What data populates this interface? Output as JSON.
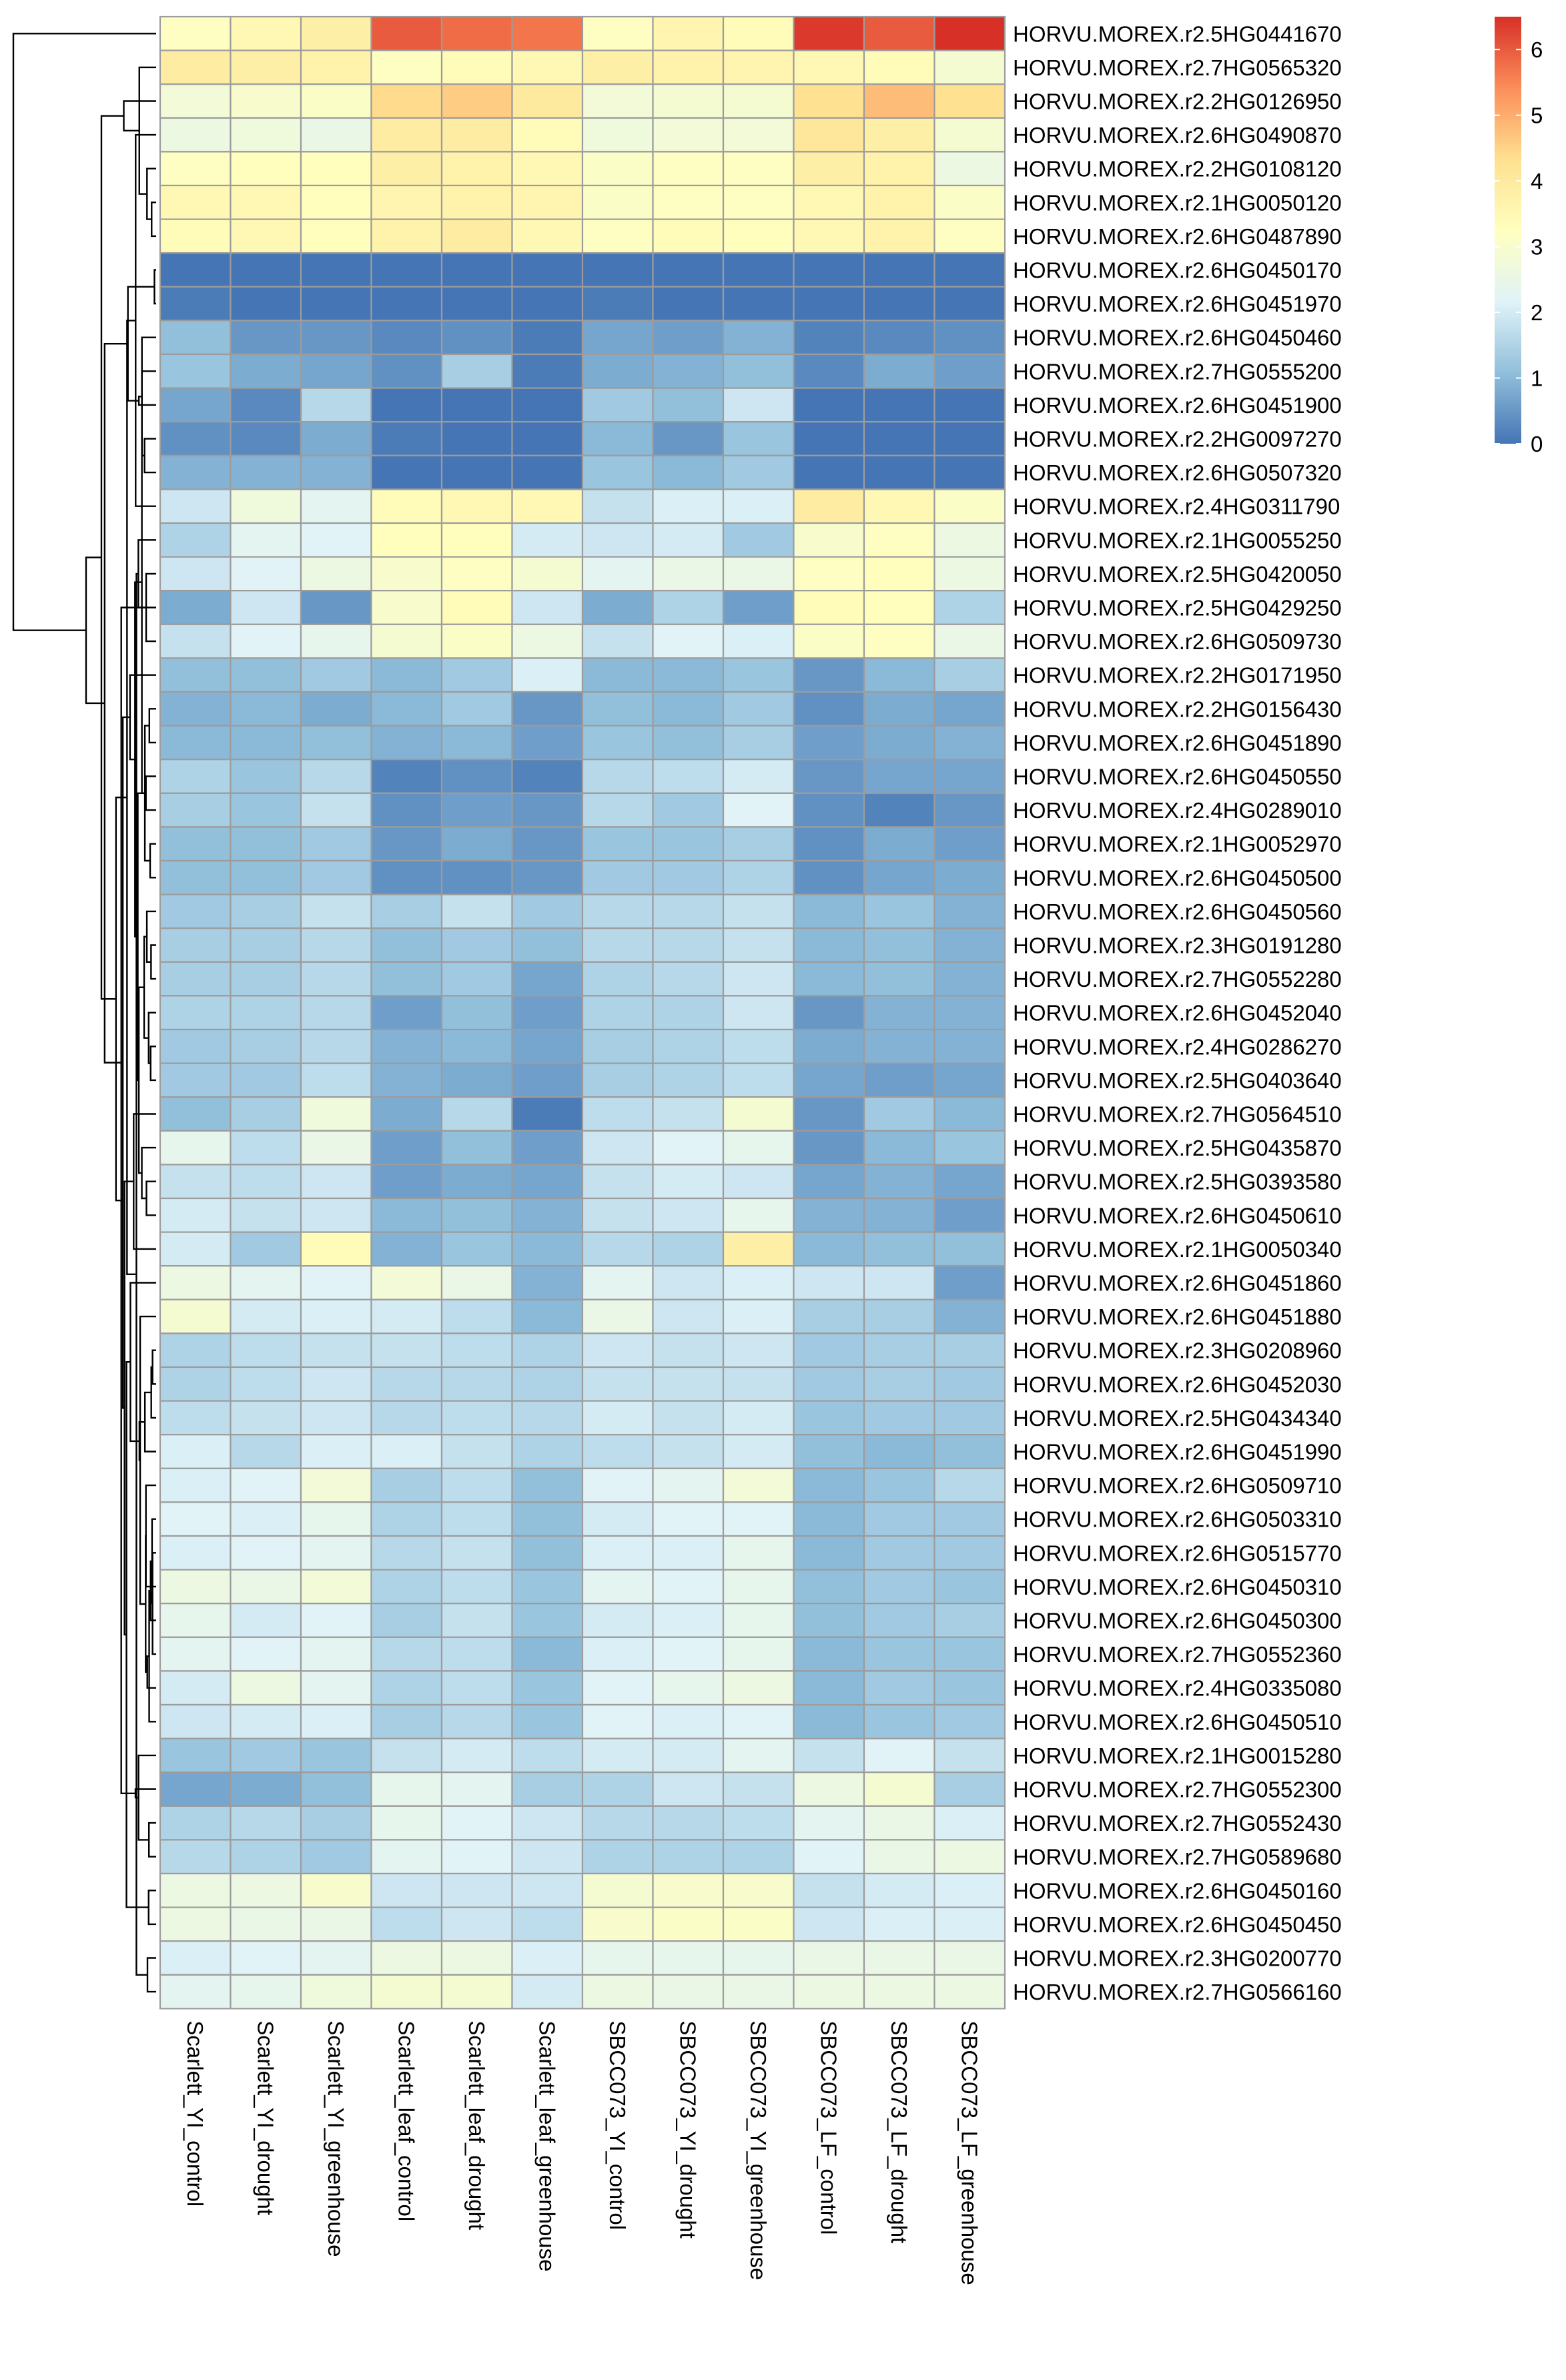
{
  "chart_data": {
    "type": "heatmap",
    "title": "",
    "xlabel": "",
    "ylabel": "",
    "columns": [
      "Scarlett_YI_control",
      "Scarlett_YI_drought",
      "Scarlett_YI_greenhouse",
      "Scarlett_leaf_control",
      "Scarlett_leaf_drought",
      "Scarlett_leaf_greenhouse",
      "SBCC073_YI_control",
      "SBCC073_YI_drought",
      "SBCC073_YI_greenhouse",
      "SBCC073_LF_control",
      "SBCC073_LF_drought",
      "SBCC073_LF_greenhouse"
    ],
    "rows": [
      "HORVU.MOREX.r2.5HG0441670",
      "HORVU.MOREX.r2.7HG0565320",
      "HORVU.MOREX.r2.2HG0126950",
      "HORVU.MOREX.r2.6HG0490870",
      "HORVU.MOREX.r2.2HG0108120",
      "HORVU.MOREX.r2.1HG0050120",
      "HORVU.MOREX.r2.6HG0487890",
      "HORVU.MOREX.r2.6HG0450170",
      "HORVU.MOREX.r2.6HG0451970",
      "HORVU.MOREX.r2.6HG0450460",
      "HORVU.MOREX.r2.7HG0555200",
      "HORVU.MOREX.r2.6HG0451900",
      "HORVU.MOREX.r2.2HG0097270",
      "HORVU.MOREX.r2.6HG0507320",
      "HORVU.MOREX.r2.4HG0311790",
      "HORVU.MOREX.r2.1HG0055250",
      "HORVU.MOREX.r2.5HG0420050",
      "HORVU.MOREX.r2.5HG0429250",
      "HORVU.MOREX.r2.6HG0509730",
      "HORVU.MOREX.r2.2HG0171950",
      "HORVU.MOREX.r2.2HG0156430",
      "HORVU.MOREX.r2.6HG0451890",
      "HORVU.MOREX.r2.6HG0450550",
      "HORVU.MOREX.r2.4HG0289010",
      "HORVU.MOREX.r2.1HG0052970",
      "HORVU.MOREX.r2.6HG0450500",
      "HORVU.MOREX.r2.6HG0450560",
      "HORVU.MOREX.r2.3HG0191280",
      "HORVU.MOREX.r2.7HG0552280",
      "HORVU.MOREX.r2.6HG0452040",
      "HORVU.MOREX.r2.4HG0286270",
      "HORVU.MOREX.r2.5HG0403640",
      "HORVU.MOREX.r2.7HG0564510",
      "HORVU.MOREX.r2.5HG0435870",
      "HORVU.MOREX.r2.5HG0393580",
      "HORVU.MOREX.r2.6HG0450610",
      "HORVU.MOREX.r2.1HG0050340",
      "HORVU.MOREX.r2.6HG0451860",
      "HORVU.MOREX.r2.6HG0451880",
      "HORVU.MOREX.r2.3HG0208960",
      "HORVU.MOREX.r2.6HG0452030",
      "HORVU.MOREX.r2.5HG0434340",
      "HORVU.MOREX.r2.6HG0451990",
      "HORVU.MOREX.r2.6HG0509710",
      "HORVU.MOREX.r2.6HG0503310",
      "HORVU.MOREX.r2.6HG0515770",
      "HORVU.MOREX.r2.6HG0450310",
      "HORVU.MOREX.r2.6HG0450300",
      "HORVU.MOREX.r2.7HG0552360",
      "HORVU.MOREX.r2.4HG0335080",
      "HORVU.MOREX.r2.6HG0450510",
      "HORVU.MOREX.r2.1HG0015280",
      "HORVU.MOREX.r2.7HG0552300",
      "HORVU.MOREX.r2.7HG0552430",
      "HORVU.MOREX.r2.7HG0589680",
      "HORVU.MOREX.r2.6HG0450160",
      "HORVU.MOREX.r2.6HG0450450",
      "HORVU.MOREX.r2.3HG0200770",
      "HORVU.MOREX.r2.7HG0566160"
    ],
    "values": [
      [
        3.2,
        3.5,
        3.8,
        6.0,
        5.8,
        5.7,
        3.2,
        3.6,
        3.4,
        6.4,
        6.0,
        6.5
      ],
      [
        3.9,
        3.8,
        3.7,
        3.2,
        3.4,
        3.5,
        3.8,
        3.7,
        3.6,
        3.5,
        3.4,
        2.9
      ],
      [
        2.8,
        3.0,
        3.1,
        4.4,
        4.6,
        4.0,
        2.8,
        2.9,
        2.9,
        4.3,
        4.8,
        4.3
      ],
      [
        2.6,
        2.7,
        2.5,
        3.9,
        3.9,
        3.4,
        2.7,
        2.8,
        2.8,
        4.1,
        3.8,
        2.9
      ],
      [
        3.2,
        3.3,
        3.3,
        3.8,
        3.7,
        3.5,
        3.1,
        3.2,
        3.2,
        3.8,
        3.7,
        2.6
      ],
      [
        3.5,
        3.5,
        3.3,
        3.6,
        3.7,
        3.6,
        3.1,
        3.2,
        3.2,
        3.5,
        3.7,
        3.1
      ],
      [
        3.4,
        3.5,
        3.3,
        3.7,
        3.9,
        3.5,
        3.2,
        3.4,
        3.3,
        3.5,
        3.7,
        3.2
      ],
      [
        0.0,
        0.0,
        0.0,
        0.0,
        0.0,
        0.0,
        0.0,
        0.0,
        0.0,
        0.0,
        0.0,
        0.0
      ],
      [
        0.1,
        0.0,
        0.0,
        0.0,
        0.0,
        0.0,
        0.1,
        0.0,
        0.0,
        0.0,
        0.0,
        0.0
      ],
      [
        1.1,
        0.5,
        0.5,
        0.3,
        0.4,
        0.1,
        0.7,
        0.6,
        0.9,
        0.2,
        0.3,
        0.4
      ],
      [
        1.2,
        0.8,
        0.7,
        0.4,
        1.4,
        0.1,
        0.8,
        0.9,
        1.1,
        0.3,
        0.8,
        0.6
      ],
      [
        0.7,
        0.3,
        1.6,
        0.0,
        0.0,
        0.0,
        1.3,
        1.1,
        1.9,
        0.0,
        0.0,
        0.0
      ],
      [
        0.4,
        0.3,
        0.8,
        0.1,
        0.0,
        0.0,
        1.0,
        0.5,
        1.2,
        0.0,
        0.0,
        0.0
      ],
      [
        0.9,
        0.9,
        0.9,
        0.0,
        0.0,
        0.0,
        1.2,
        1.0,
        1.3,
        0.0,
        0.0,
        0.0
      ],
      [
        1.9,
        2.7,
        2.3,
        3.4,
        3.5,
        3.5,
        1.8,
        2.1,
        2.1,
        3.9,
        3.5,
        3.1
      ],
      [
        1.5,
        2.3,
        2.2,
        3.3,
        3.3,
        2.0,
        1.9,
        2.0,
        1.3,
        3.0,
        3.2,
        2.6
      ],
      [
        1.9,
        2.2,
        2.6,
        3.0,
        3.2,
        2.9,
        2.3,
        2.5,
        2.5,
        3.2,
        3.3,
        2.6
      ],
      [
        0.8,
        1.9,
        0.5,
        3.0,
        3.4,
        1.9,
        0.8,
        1.5,
        0.6,
        3.4,
        3.3,
        1.5
      ],
      [
        1.8,
        2.2,
        2.4,
        2.9,
        3.1,
        2.6,
        1.8,
        2.2,
        2.1,
        3.1,
        3.2,
        2.5
      ],
      [
        1.1,
        1.1,
        1.3,
        1.0,
        1.3,
        2.1,
        1.0,
        1.0,
        1.2,
        0.5,
        1.0,
        1.4
      ],
      [
        0.9,
        1.0,
        0.8,
        1.0,
        1.3,
        0.5,
        1.1,
        1.0,
        1.3,
        0.4,
        0.8,
        0.7
      ],
      [
        1.0,
        1.0,
        1.1,
        0.9,
        1.0,
        0.6,
        1.2,
        1.1,
        1.4,
        0.6,
        0.8,
        0.9
      ],
      [
        1.5,
        1.2,
        1.6,
        0.2,
        0.4,
        0.2,
        1.6,
        1.7,
        2.0,
        0.5,
        0.7,
        0.7
      ],
      [
        1.4,
        1.2,
        1.8,
        0.4,
        0.6,
        0.5,
        1.6,
        1.3,
        2.2,
        0.4,
        0.2,
        0.5
      ],
      [
        1.1,
        1.1,
        1.3,
        0.5,
        0.8,
        0.5,
        1.2,
        1.2,
        1.4,
        0.4,
        0.8,
        0.6
      ],
      [
        1.1,
        1.1,
        1.3,
        0.4,
        0.4,
        0.5,
        1.3,
        1.3,
        1.5,
        0.4,
        0.7,
        0.8
      ],
      [
        1.3,
        1.4,
        1.8,
        1.4,
        1.8,
        1.3,
        1.6,
        1.6,
        1.8,
        1.0,
        1.2,
        0.9
      ],
      [
        1.4,
        1.4,
        1.6,
        1.1,
        1.3,
        1.1,
        1.6,
        1.6,
        1.8,
        1.0,
        1.1,
        0.9
      ],
      [
        1.4,
        1.4,
        1.6,
        1.1,
        1.3,
        0.7,
        1.5,
        1.6,
        1.9,
        1.0,
        1.1,
        0.9
      ],
      [
        1.5,
        1.5,
        1.6,
        0.6,
        1.1,
        0.6,
        1.5,
        1.5,
        1.9,
        0.5,
        0.9,
        0.9
      ],
      [
        1.3,
        1.4,
        1.6,
        0.9,
        1.0,
        0.7,
        1.4,
        1.5,
        1.7,
        0.8,
        0.9,
        0.9
      ],
      [
        1.3,
        1.3,
        1.7,
        0.9,
        0.8,
        0.6,
        1.4,
        1.5,
        1.7,
        0.7,
        0.6,
        0.7
      ],
      [
        1.1,
        1.4,
        2.7,
        0.8,
        1.6,
        0.1,
        1.7,
        1.8,
        2.9,
        0.5,
        1.3,
        1.0
      ],
      [
        2.4,
        1.7,
        2.5,
        0.6,
        1.1,
        0.6,
        1.9,
        2.2,
        2.4,
        0.5,
        1.0,
        1.2
      ],
      [
        1.8,
        1.7,
        1.9,
        0.6,
        0.8,
        0.7,
        1.8,
        2.0,
        1.9,
        0.7,
        0.9,
        0.7
      ],
      [
        2.0,
        1.8,
        1.9,
        1.0,
        1.1,
        0.9,
        1.8,
        1.9,
        2.4,
        0.9,
        0.9,
        0.6
      ],
      [
        2.0,
        1.3,
        3.4,
        0.9,
        1.2,
        1.0,
        1.6,
        1.5,
        3.8,
        1.0,
        1.1,
        1.1
      ],
      [
        2.6,
        2.3,
        2.2,
        2.8,
        2.5,
        0.9,
        2.3,
        1.9,
        2.1,
        1.9,
        1.9,
        0.6
      ],
      [
        2.9,
        2.0,
        2.1,
        2.0,
        1.7,
        1.0,
        2.5,
        1.9,
        2.1,
        1.4,
        1.4,
        0.9
      ],
      [
        1.5,
        1.7,
        1.8,
        1.8,
        1.7,
        1.5,
        1.9,
        1.8,
        1.9,
        1.3,
        1.4,
        1.4
      ],
      [
        1.5,
        1.7,
        1.9,
        1.6,
        1.6,
        1.5,
        1.8,
        1.8,
        1.8,
        1.3,
        1.4,
        1.3
      ],
      [
        1.7,
        1.8,
        1.9,
        1.6,
        1.7,
        1.6,
        2.0,
        1.8,
        2.0,
        1.2,
        1.3,
        1.3
      ],
      [
        2.1,
        1.6,
        2.1,
        2.1,
        1.8,
        1.5,
        1.7,
        1.8,
        2.0,
        1.1,
        1.0,
        1.1
      ],
      [
        2.1,
        2.2,
        2.8,
        1.4,
        1.7,
        1.1,
        2.2,
        2.3,
        2.8,
        1.0,
        1.2,
        1.6
      ],
      [
        2.2,
        2.1,
        2.4,
        1.5,
        1.7,
        1.1,
        2.0,
        2.2,
        2.2,
        1.0,
        1.3,
        1.3
      ],
      [
        2.1,
        2.2,
        2.3,
        1.6,
        1.8,
        1.1,
        2.1,
        2.1,
        2.4,
        1.0,
        1.3,
        1.3
      ],
      [
        2.6,
        2.5,
        2.8,
        1.5,
        1.7,
        1.2,
        2.3,
        2.2,
        2.4,
        1.1,
        1.3,
        1.2
      ],
      [
        2.4,
        2.0,
        2.2,
        1.4,
        1.8,
        1.2,
        2.0,
        2.1,
        2.4,
        1.1,
        1.3,
        1.4
      ],
      [
        2.3,
        2.2,
        2.3,
        1.6,
        1.7,
        1.0,
        2.1,
        2.2,
        2.4,
        1.0,
        1.2,
        1.2
      ],
      [
        2.0,
        2.6,
        2.3,
        1.5,
        1.7,
        1.2,
        2.2,
        2.4,
        2.6,
        1.0,
        1.3,
        1.2
      ],
      [
        1.9,
        2.0,
        2.1,
        1.4,
        1.6,
        1.2,
        2.2,
        2.1,
        2.2,
        1.0,
        1.2,
        1.3
      ],
      [
        1.2,
        1.3,
        1.2,
        1.8,
        2.0,
        1.7,
        2.0,
        2.0,
        2.3,
        1.8,
        2.2,
        1.8
      ],
      [
        0.7,
        0.8,
        1.1,
        2.4,
        2.3,
        1.4,
        1.5,
        1.9,
        1.8,
        2.6,
        2.9,
        1.4
      ],
      [
        1.5,
        1.6,
        1.4,
        2.4,
        2.2,
        1.9,
        1.6,
        1.6,
        1.7,
        2.3,
        2.5,
        2.1
      ],
      [
        1.6,
        1.5,
        1.3,
        2.3,
        2.2,
        1.9,
        1.5,
        1.5,
        1.5,
        2.2,
        2.5,
        2.6
      ],
      [
        2.6,
        2.6,
        3.0,
        1.9,
        1.9,
        1.9,
        2.9,
        3.0,
        3.0,
        1.8,
        2.0,
        2.1
      ],
      [
        2.6,
        2.5,
        2.5,
        1.7,
        1.9,
        1.7,
        3.0,
        3.1,
        3.1,
        1.9,
        2.1,
        2.1
      ],
      [
        2.1,
        2.2,
        2.3,
        2.6,
        2.6,
        2.1,
        2.4,
        2.4,
        2.4,
        2.5,
        2.5,
        2.5
      ],
      [
        2.3,
        2.4,
        2.7,
        2.9,
        2.9,
        2.0,
        2.6,
        2.5,
        2.5,
        2.6,
        2.6,
        2.6
      ]
    ],
    "colorbar": {
      "min": 0,
      "max": 6.5,
      "ticks": [
        "0",
        "1",
        "2",
        "3",
        "4",
        "5",
        "6"
      ],
      "colors": [
        "#4575b4",
        "#91bfdb",
        "#e0f3f8",
        "#ffffbf",
        "#fee090",
        "#fc8d59",
        "#d73027"
      ]
    },
    "row_dendrogram": true,
    "column_dendrogram": false,
    "legend_position": "top-right"
  }
}
